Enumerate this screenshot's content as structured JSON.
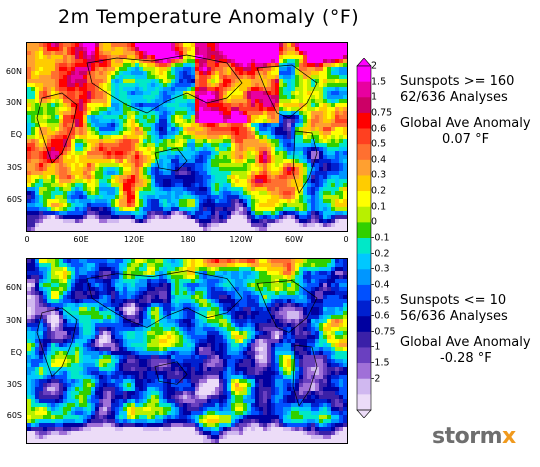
{
  "title": "2m Temperature Anomaly (°F)",
  "chart_data": [
    {
      "type": "heatmap",
      "panel": "top",
      "condition": "Sunspots >= 160",
      "analyses": "62/636 Analyses",
      "stat_label": "Global Ave Anomaly",
      "stat_value": "0.07 °F",
      "lat_ticks": [
        "60N",
        "30N",
        "EQ",
        "30S",
        "60S"
      ],
      "lon_ticks": [
        "0",
        "60E",
        "120E",
        "180",
        "120W",
        "60W",
        "0"
      ]
    },
    {
      "type": "heatmap",
      "panel": "bottom",
      "condition": "Sunspots <= 10",
      "analyses": "56/636 Analyses",
      "stat_label": "Global Ave Anomaly",
      "stat_value": "-0.28 °F",
      "lat_ticks": [
        "60N",
        "30N",
        "EQ",
        "30S",
        "60S"
      ]
    }
  ],
  "colorbar": {
    "levels": [
      "2",
      "1.5",
      "1",
      "0.75",
      "0.6",
      "0.5",
      "0.4",
      "0.3",
      "0.2",
      "0.1",
      "0",
      "-0.1",
      "-0.2",
      "-0.3",
      "-0.4",
      "-0.5",
      "-0.6",
      "-0.75",
      "-1",
      "-1.5",
      "-2"
    ],
    "colors": [
      "#ff00ff",
      "#e800a0",
      "#cc0066",
      "#ff0000",
      "#ff4020",
      "#ff7030",
      "#ffa030",
      "#ffcc00",
      "#ffff00",
      "#b8f000",
      "#30d000",
      "#00e8c8",
      "#00c8ff",
      "#0096ff",
      "#0050ff",
      "#0020d0",
      "#0000a0",
      "#3a20a8",
      "#6a40c0",
      "#a070d8",
      "#d0b8f0",
      "#ecdcf8"
    ]
  },
  "brand": {
    "prefix": "storm",
    "suffix": "x",
    "text_color": "#6e6e6e",
    "accent_color": "#f09a1e"
  }
}
